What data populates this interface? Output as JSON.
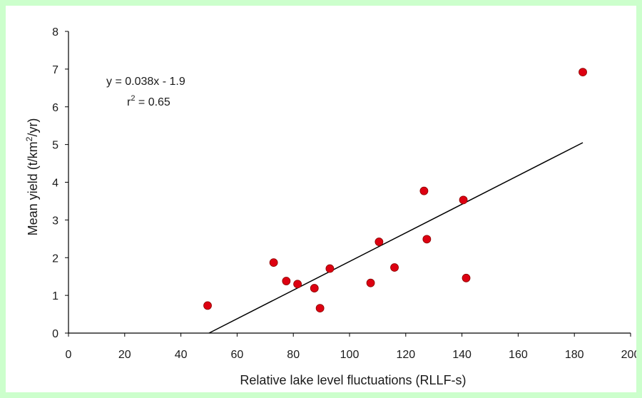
{
  "chart_data": {
    "type": "scatter",
    "xlabel": "Relative lake level fluctuations (RLLF-s)",
    "ylabel_main": "Mean yield (t/km",
    "ylabel_sup": "2",
    "ylabel_tail": "/yr)",
    "xlim": [
      0,
      200
    ],
    "ylim": [
      0,
      8
    ],
    "xticks": [
      0,
      20,
      40,
      60,
      80,
      100,
      120,
      140,
      160,
      180,
      200
    ],
    "yticks": [
      0,
      1,
      2,
      3,
      4,
      5,
      6,
      7,
      8
    ],
    "grid": false,
    "marker_color": "#dd0011",
    "points": [
      {
        "x": 49.5,
        "y": 0.73
      },
      {
        "x": 73,
        "y": 1.87
      },
      {
        "x": 77.5,
        "y": 1.38
      },
      {
        "x": 81.5,
        "y": 1.3
      },
      {
        "x": 87.5,
        "y": 1.19
      },
      {
        "x": 89.5,
        "y": 0.66
      },
      {
        "x": 93,
        "y": 1.71
      },
      {
        "x": 107.5,
        "y": 1.33
      },
      {
        "x": 110.5,
        "y": 2.42
      },
      {
        "x": 116,
        "y": 1.74
      },
      {
        "x": 126.5,
        "y": 3.77
      },
      {
        "x": 127.5,
        "y": 2.49
      },
      {
        "x": 140.5,
        "y": 3.53
      },
      {
        "x": 141.5,
        "y": 1.46
      },
      {
        "x": 183,
        "y": 6.92
      }
    ],
    "trendline": {
      "x0": 50,
      "y0": 0,
      "x1": 183,
      "y1": 5.05
    },
    "equation": "y = 0.038x - 1.9",
    "r2_prefix": "r",
    "r2_sup": "2",
    "r2_value": " = 0.65"
  }
}
